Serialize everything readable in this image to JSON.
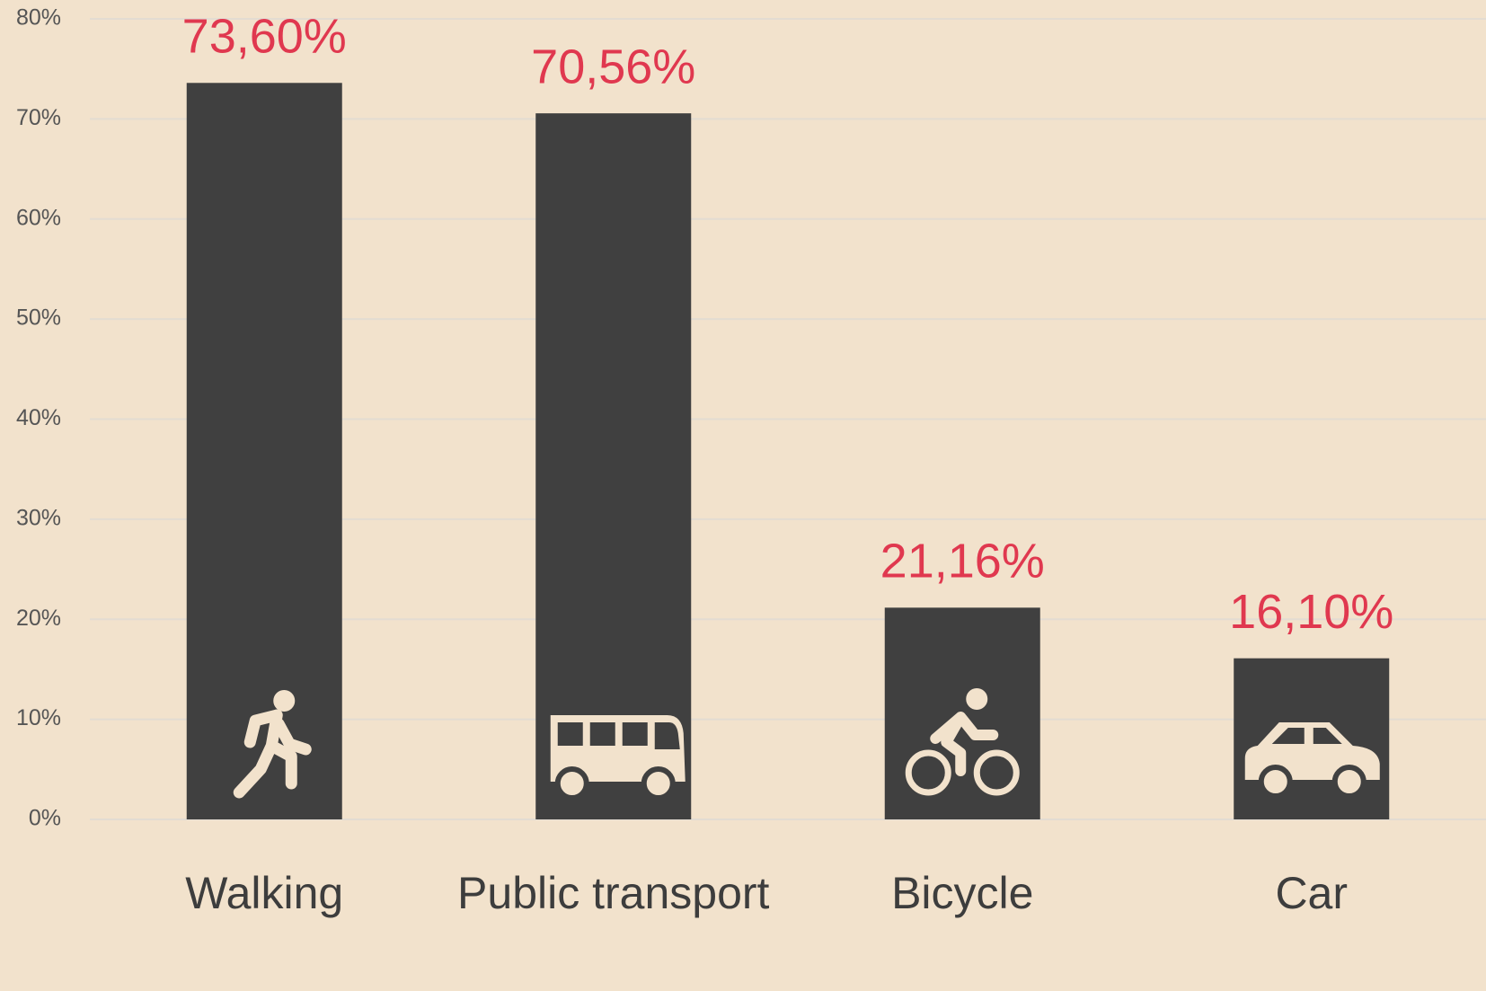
{
  "chart_data": {
    "type": "bar",
    "categories": [
      "Walking",
      "Public transport",
      "Bicycle",
      "Car"
    ],
    "values": [
      73.6,
      70.56,
      21.16,
      16.1
    ],
    "value_labels": [
      "73,60%",
      "70,56%",
      "21,16%",
      "16,10%"
    ],
    "color": "#404040",
    "label_color": "#e0384f",
    "ylim": [
      0,
      80
    ],
    "yticks": [
      {
        "value": 0,
        "label": "0%"
      },
      {
        "value": 10,
        "label": "10%"
      },
      {
        "value": 20,
        "label": "20%"
      },
      {
        "value": 30,
        "label": "30%"
      },
      {
        "value": 40,
        "label": "40%"
      },
      {
        "value": 50,
        "label": "50%"
      },
      {
        "value": 60,
        "label": "60%"
      },
      {
        "value": 70,
        "label": "70%"
      },
      {
        "value": 80,
        "label": "80%"
      }
    ],
    "grid": true
  }
}
